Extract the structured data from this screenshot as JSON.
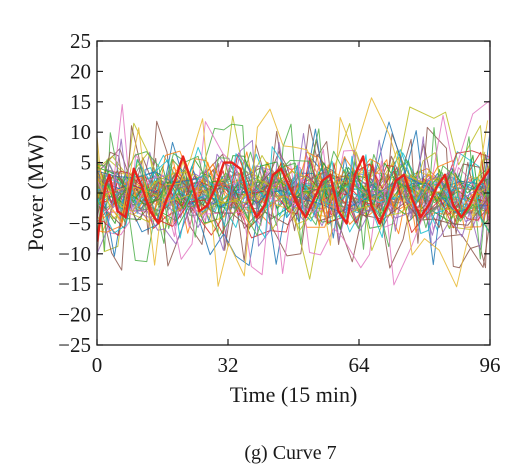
{
  "chart_data": {
    "type": "line",
    "title": "",
    "caption": "(g) Curve 7",
    "xlabel": "Time (15 min)",
    "ylabel": "Power (MW)",
    "xlim": [
      0,
      96
    ],
    "ylim": [
      -25,
      25
    ],
    "xticks": [
      0,
      32,
      64,
      96
    ],
    "yticks": [
      -25,
      -20,
      -15,
      -10,
      -5,
      0,
      5,
      10,
      15,
      20,
      25
    ],
    "grid": false,
    "legend": "none",
    "background_series": {
      "count": 60,
      "description_colors": [
        "#1f77b4",
        "#ff7f0e",
        "#2ca02c",
        "#d62728",
        "#9467bd",
        "#8c564b",
        "#e377c2",
        "#7f7f7f",
        "#bcbd22",
        "#17becf",
        "#e8b830",
        "#4daf4a"
      ],
      "line_width": 1,
      "opacity": 0.85
    },
    "highlight_series": {
      "color": "#e8231c",
      "x": [
        0,
        2,
        3,
        5,
        7,
        9,
        11,
        13,
        15,
        17,
        19,
        21,
        23,
        25,
        27,
        29,
        31,
        33,
        35,
        37,
        39,
        41,
        43,
        45,
        47,
        49,
        51,
        53,
        55,
        57,
        59,
        61,
        63,
        65,
        67,
        69,
        71,
        73,
        75,
        77,
        79,
        81,
        83,
        85,
        87,
        89,
        91,
        93,
        96
      ],
      "values": [
        -8,
        1,
        3,
        -3,
        -4,
        4,
        1,
        -3,
        -5,
        -1,
        2,
        6,
        2,
        -3,
        -2,
        1,
        5,
        5,
        4,
        -1,
        -4,
        -2,
        3,
        4,
        1,
        -2,
        -4,
        -1,
        2,
        3,
        -3,
        -5,
        3,
        6,
        -2,
        -5,
        -2,
        2,
        3,
        -1,
        -4,
        -2,
        1,
        3,
        -2,
        -4,
        -2,
        1,
        4
      ]
    }
  }
}
